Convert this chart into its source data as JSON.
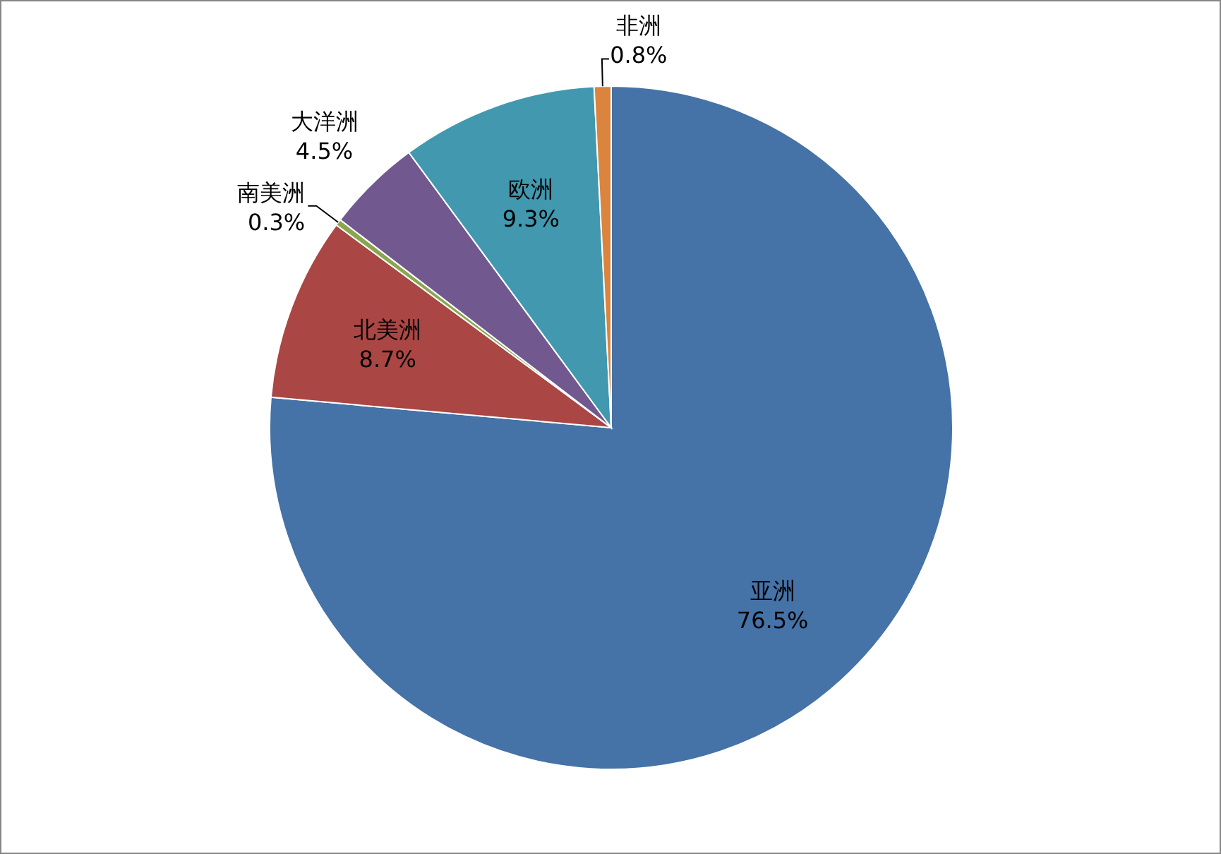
{
  "chart_data": {
    "type": "pie",
    "categories": [
      "亚洲",
      "北美洲",
      "南美洲",
      "大洋洲",
      "欧洲",
      "非洲"
    ],
    "values": [
      76.5,
      8.7,
      0.3,
      4.5,
      9.3,
      0.8
    ],
    "value_labels": [
      "76.5%",
      "8.7%",
      "0.3%",
      "4.5%",
      "9.3%",
      "0.8%"
    ],
    "colors": [
      "#4572a7",
      "#aa4643",
      "#89a54e",
      "#71588f",
      "#4198af",
      "#db843d"
    ]
  }
}
